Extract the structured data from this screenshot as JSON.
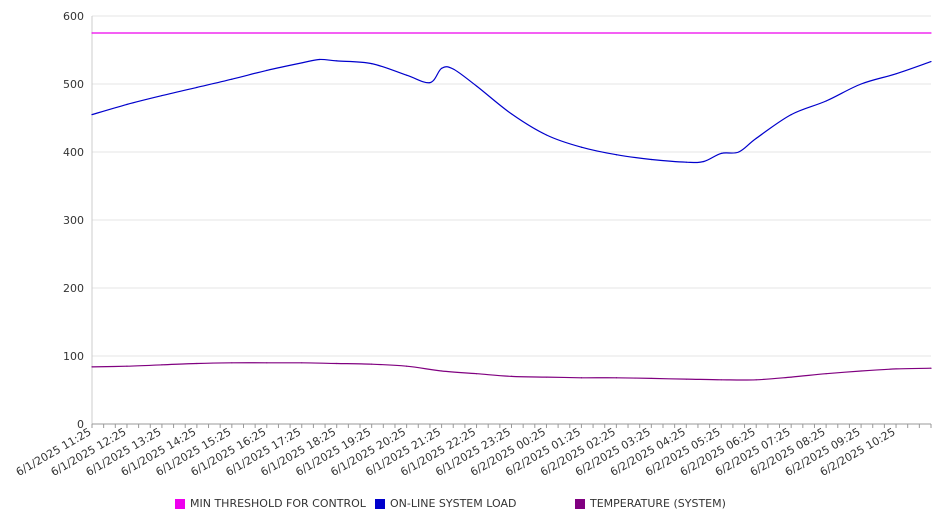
{
  "chart_data": {
    "type": "line",
    "ylim": [
      0,
      600
    ],
    "y_ticks": [
      "0",
      "100",
      "200",
      "300",
      "400",
      "500",
      "600"
    ],
    "x_range": [
      "2025-06-01T11:25",
      "2025-06-02T11:25"
    ],
    "x_tick_labels": [
      "6/1/2025 11:25",
      "6/1/2025 12:25",
      "6/1/2025 13:25",
      "6/1/2025 14:25",
      "6/1/2025 15:25",
      "6/1/2025 16:25",
      "6/1/2025 17:25",
      "6/1/2025 18:25",
      "6/1/2025 19:25",
      "6/1/2025 20:25",
      "6/1/2025 21:25",
      "6/1/2025 22:25",
      "6/1/2025 23:25",
      "6/2/2025 00:25",
      "6/2/2025 01:25",
      "6/2/2025 02:25",
      "6/2/2025 03:25",
      "6/2/2025 04:25",
      "6/2/2025 05:25",
      "6/2/2025 06:25",
      "6/2/2025 07:25",
      "6/2/2025 08:25",
      "6/2/2025 09:25",
      "6/2/2025 10:25"
    ],
    "grid": true,
    "legend_position": "bottom",
    "series": [
      {
        "name": "MIN THRESHOLD FOR CONTROL",
        "color": "#ee00ee",
        "points": [
          [
            "6/1/2025 11:25",
            575
          ],
          [
            "6/2/2025 11:25",
            575
          ]
        ]
      },
      {
        "name": "ON-LINE SYSTEM LOAD",
        "color": "#0000cc",
        "points": [
          [
            "6/1/2025 11:25",
            455
          ],
          [
            "6/1/2025 12:25",
            470
          ],
          [
            "6/1/2025 13:25",
            483
          ],
          [
            "6/1/2025 14:25",
            495
          ],
          [
            "6/1/2025 15:25",
            507
          ],
          [
            "6/1/2025 16:25",
            520
          ],
          [
            "6/1/2025 17:25",
            531
          ],
          [
            "6/1/2025 17:55",
            536
          ],
          [
            "6/1/2025 18:25",
            534
          ],
          [
            "6/1/2025 19:25",
            530
          ],
          [
            "6/1/2025 20:25",
            513
          ],
          [
            "6/1/2025 21:05",
            502
          ],
          [
            "6/1/2025 21:25",
            523
          ],
          [
            "6/1/2025 21:45",
            522
          ],
          [
            "6/1/2025 22:25",
            497
          ],
          [
            "6/1/2025 23:25",
            456
          ],
          [
            "6/2/2025 00:25",
            425
          ],
          [
            "6/2/2025 01:25",
            407
          ],
          [
            "6/2/2025 02:25",
            396
          ],
          [
            "6/2/2025 03:25",
            389
          ],
          [
            "6/2/2025 04:25",
            385
          ],
          [
            "6/2/2025 04:55",
            386
          ],
          [
            "6/2/2025 05:25",
            398
          ],
          [
            "6/2/2025 05:55",
            400
          ],
          [
            "6/2/2025 06:25",
            420
          ],
          [
            "6/2/2025 07:25",
            455
          ],
          [
            "6/2/2025 08:25",
            475
          ],
          [
            "6/2/2025 09:25",
            500
          ],
          [
            "6/2/2025 10:25",
            515
          ],
          [
            "6/2/2025 11:25",
            533
          ]
        ]
      },
      {
        "name": "TEMPERATURE (SYSTEM)",
        "color": "#800080",
        "points": [
          [
            "6/1/2025 11:25",
            84
          ],
          [
            "6/1/2025 12:25",
            85
          ],
          [
            "6/1/2025 13:25",
            87
          ],
          [
            "6/1/2025 14:25",
            89
          ],
          [
            "6/1/2025 15:25",
            90
          ],
          [
            "6/1/2025 16:25",
            90
          ],
          [
            "6/1/2025 17:25",
            90
          ],
          [
            "6/1/2025 18:25",
            89
          ],
          [
            "6/1/2025 19:25",
            88
          ],
          [
            "6/1/2025 20:25",
            85
          ],
          [
            "6/1/2025 21:25",
            78
          ],
          [
            "6/1/2025 22:25",
            74
          ],
          [
            "6/1/2025 23:25",
            70
          ],
          [
            "6/2/2025 00:25",
            69
          ],
          [
            "6/2/2025 01:25",
            68
          ],
          [
            "6/2/2025 02:25",
            68
          ],
          [
            "6/2/2025 03:25",
            67
          ],
          [
            "6/2/2025 04:25",
            66
          ],
          [
            "6/2/2025 05:25",
            65
          ],
          [
            "6/2/2025 06:25",
            65
          ],
          [
            "6/2/2025 07:25",
            69
          ],
          [
            "6/2/2025 08:25",
            74
          ],
          [
            "6/2/2025 09:25",
            78
          ],
          [
            "6/2/2025 10:25",
            81
          ],
          [
            "6/2/2025 11:25",
            82
          ]
        ]
      }
    ]
  }
}
